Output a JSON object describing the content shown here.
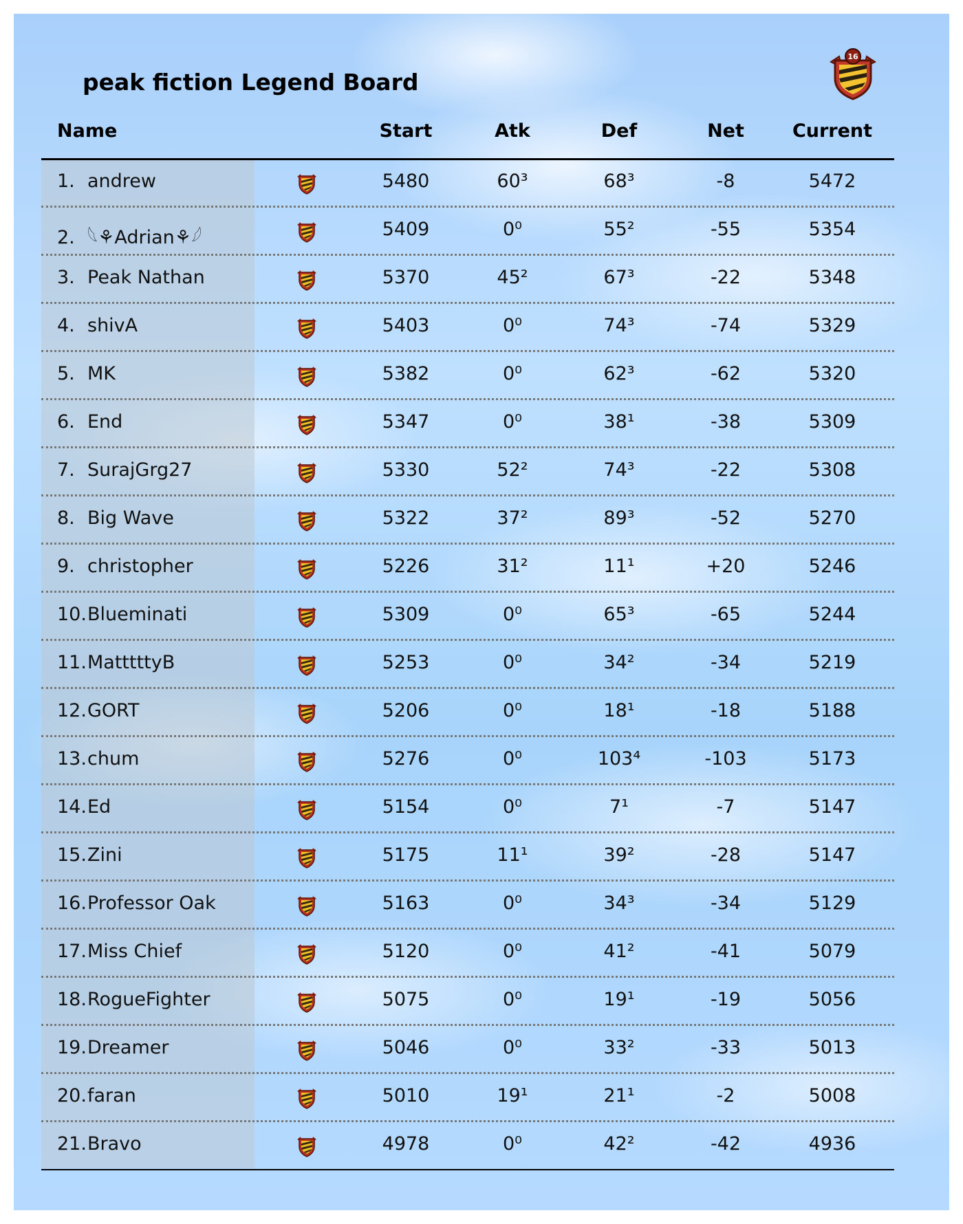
{
  "title": "peak fiction Legend Board",
  "crest_level": "16",
  "columns": {
    "name": "Name",
    "start": "Start",
    "atk": "Atk",
    "def": "Def",
    "net": "Net",
    "current": "Current"
  },
  "rows": [
    {
      "rank": "1.",
      "name": "andrew",
      "start": "5480",
      "atk": "60³",
      "def": "68³",
      "net": "-8",
      "current": "5472"
    },
    {
      "rank": "2.",
      "name": "𓆩⚘Adrian⚘𓆪",
      "start": "5409",
      "atk": "0⁰",
      "def": "55²",
      "net": "-55",
      "current": "5354"
    },
    {
      "rank": "3.",
      "name": "Peak Nathan",
      "start": "5370",
      "atk": "45²",
      "def": "67³",
      "net": "-22",
      "current": "5348"
    },
    {
      "rank": "4.",
      "name": "shivA",
      "start": "5403",
      "atk": "0⁰",
      "def": "74³",
      "net": "-74",
      "current": "5329"
    },
    {
      "rank": "5.",
      "name": "MK",
      "start": "5382",
      "atk": "0⁰",
      "def": "62³",
      "net": "-62",
      "current": "5320"
    },
    {
      "rank": "6.",
      "name": "End",
      "start": "5347",
      "atk": "0⁰",
      "def": "38¹",
      "net": "-38",
      "current": "5309"
    },
    {
      "rank": "7.",
      "name": "SurajGrg27",
      "start": "5330",
      "atk": "52²",
      "def": "74³",
      "net": "-22",
      "current": "5308"
    },
    {
      "rank": "8.",
      "name": "Big Wave",
      "start": "5322",
      "atk": "37²",
      "def": "89³",
      "net": "-52",
      "current": "5270"
    },
    {
      "rank": "9.",
      "name": "christopher",
      "start": "5226",
      "atk": "31²",
      "def": "11¹",
      "net": "+20",
      "current": "5246"
    },
    {
      "rank": "10.",
      "name": "Blueminati",
      "start": "5309",
      "atk": "0⁰",
      "def": "65³",
      "net": "-65",
      "current": "5244"
    },
    {
      "rank": "11.",
      "name": "MatttttyB",
      "start": "5253",
      "atk": "0⁰",
      "def": "34²",
      "net": "-34",
      "current": "5219"
    },
    {
      "rank": "12.",
      "name": "GORT",
      "start": "5206",
      "atk": "0⁰",
      "def": "18¹",
      "net": "-18",
      "current": "5188"
    },
    {
      "rank": "13.",
      "name": "chum",
      "start": "5276",
      "atk": "0⁰",
      "def": "103⁴",
      "net": "-103",
      "current": "5173"
    },
    {
      "rank": "14.",
      "name": "Ed",
      "start": "5154",
      "atk": "0⁰",
      "def": "7¹",
      "net": "-7",
      "current": "5147"
    },
    {
      "rank": "15.",
      "name": "Zini",
      "start": "5175",
      "atk": "11¹",
      "def": "39²",
      "net": "-28",
      "current": "5147"
    },
    {
      "rank": "16.",
      "name": "Professor Oak",
      "start": "5163",
      "atk": "0⁰",
      "def": "34³",
      "net": "-34",
      "current": "5129"
    },
    {
      "rank": "17.",
      "name": "Miss Chief",
      "start": "5120",
      "atk": "0⁰",
      "def": "41²",
      "net": "-41",
      "current": "5079"
    },
    {
      "rank": "18.",
      "name": "RogueFighter",
      "start": "5075",
      "atk": "0⁰",
      "def": "19¹",
      "net": "-19",
      "current": "5056"
    },
    {
      "rank": "19.",
      "name": "Dreamer",
      "start": "5046",
      "atk": "0⁰",
      "def": "33²",
      "net": "-33",
      "current": "5013"
    },
    {
      "rank": "20.",
      "name": "faran",
      "start": "5010",
      "atk": "19¹",
      "def": "21¹",
      "net": "-2",
      "current": "5008"
    },
    {
      "rank": "21.",
      "name": "Bravo",
      "start": "4978",
      "atk": "0⁰",
      "def": "42²",
      "net": "-42",
      "current": "4936"
    }
  ],
  "icons": {
    "clan_badge": "clan-badge-icon"
  },
  "colors": {
    "badge_red": "#b8321f",
    "badge_gold": "#f0c02a",
    "badge_dark": "#3a2a10"
  }
}
